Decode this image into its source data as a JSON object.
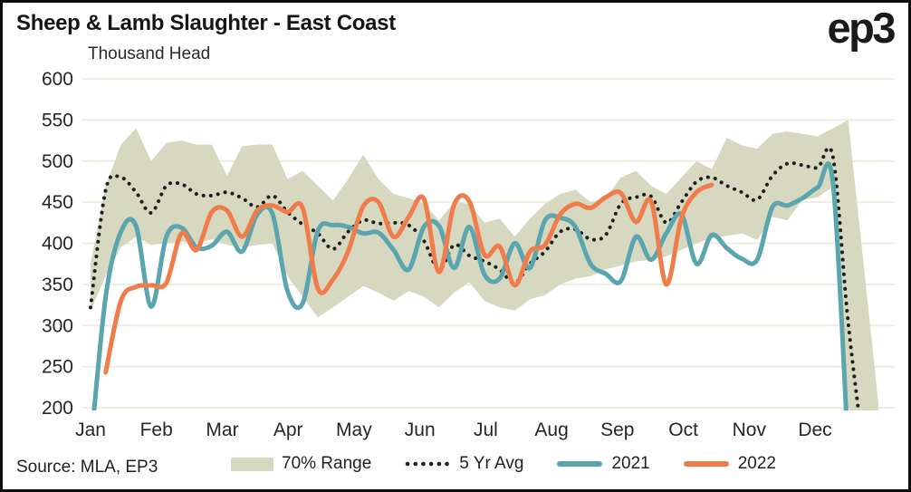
{
  "header": {
    "title": "Sheep & Lamb Slaughter - East Coast",
    "subtitle": "Thousand Head",
    "logo": "ep3"
  },
  "source": "Source: MLA, EP3",
  "colors": {
    "band": "#d7d8c0",
    "grid": "#efede0",
    "avg": "#1e1e1e",
    "y2021": "#5aa5ae",
    "y2022": "#f07c4c",
    "text": "#1c1c1c"
  },
  "legend": [
    {
      "label": "70% Range",
      "type": "band"
    },
    {
      "label": "5 Yr Avg",
      "type": "dotted"
    },
    {
      "label": "2021",
      "type": "line",
      "color_key": "y2021"
    },
    {
      "label": "2022",
      "type": "line",
      "color_key": "y2022"
    }
  ],
  "chart_data": {
    "type": "line",
    "title": "Sheep & Lamb Slaughter - East Coast",
    "ylabel": "Thousand Head",
    "ylim": [
      200,
      600
    ],
    "yticks": [
      200,
      250,
      300,
      350,
      400,
      450,
      500,
      550,
      600
    ],
    "x_unit": "week-of-year",
    "xtick_labels": [
      "Jan",
      "Feb",
      "Mar",
      "Apr",
      "May",
      "Jun",
      "Jul",
      "Aug",
      "Sep",
      "Oct",
      "Nov",
      "Dec"
    ],
    "grid": "horizontal-only",
    "legend_position": "bottom",
    "series": [
      {
        "name": "70% Range",
        "type": "band",
        "start_week": 1,
        "upper": [
          375,
          470,
          520,
          540,
          500,
          522,
          525,
          520,
          520,
          482,
          518,
          520,
          520,
          478,
          488,
          470,
          452,
          478,
          508,
          478,
          460,
          455,
          448,
          428,
          450,
          448,
          425,
          430,
          408,
          430,
          448,
          460,
          465,
          450,
          455,
          480,
          488,
          470,
          460,
          480,
          500,
          490,
          528,
          519,
          515,
          533,
          536,
          533,
          530,
          540,
          550,
          380,
          205
        ],
        "lower": [
          318,
          360,
          395,
          408,
          398,
          400,
          402,
          400,
          405,
          398,
          395,
          398,
          400,
          360,
          335,
          310,
          322,
          335,
          348,
          340,
          330,
          342,
          335,
          322,
          340,
          353,
          330,
          322,
          318,
          332,
          337,
          350,
          357,
          360,
          368,
          373,
          378,
          380,
          384,
          392,
          400,
          406,
          409,
          412,
          404,
          432,
          428,
          453,
          456,
          469,
          200,
          168,
          165
        ]
      },
      {
        "name": "5 Yr Avg",
        "type": "dotted-line",
        "start_week": 1,
        "values": [
          322,
          465,
          480,
          462,
          437,
          470,
          472,
          460,
          458,
          462,
          455,
          444,
          458,
          438,
          423,
          412,
          393,
          414,
          428,
          424,
          425,
          422,
          403,
          368,
          398,
          385,
          378,
          368,
          352,
          375,
          390,
          414,
          417,
          405,
          410,
          448,
          456,
          457,
          425,
          450,
          475,
          480,
          470,
          462,
          453,
          482,
          497,
          495,
          492,
          505,
          305,
          150
        ]
      },
      {
        "name": "2021",
        "type": "line",
        "start_week": 1,
        "values": [
          150,
          335,
          414,
          421,
          323,
          408,
          419,
          395,
          397,
          414,
          390,
          435,
          436,
          342,
          327,
          415,
          422,
          420,
          412,
          413,
          392,
          368,
          420,
          421,
          370,
          420,
          362,
          357,
          400,
          370,
          428,
          431,
          420,
          375,
          363,
          354,
          408,
          380,
          412,
          435,
          375,
          410,
          394,
          381,
          380,
          444,
          446,
          455,
          468,
          474,
          150
        ]
      },
      {
        "name": "2022",
        "type": "line",
        "start_week": 2,
        "values": [
          243,
          330,
          347,
          349,
          352,
          412,
          392,
          438,
          440,
          408,
          440,
          446,
          438,
          443,
          345,
          356,
          390,
          445,
          450,
          408,
          432,
          454,
          365,
          447,
          451,
          386,
          396,
          349,
          390,
          398,
          435,
          448,
          443,
          456,
          461,
          426,
          451,
          350,
          431,
          462,
          471
        ]
      }
    ]
  }
}
